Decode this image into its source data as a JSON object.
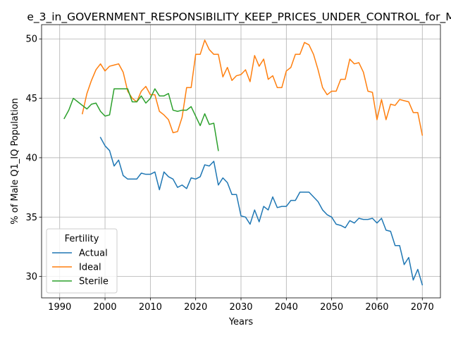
{
  "chart_data": {
    "type": "line",
    "title": "e_3_in_GOVERNMENT_RESPONSIBILITY_KEEP_PRICES_UNDER_CONTROL_for_M",
    "xlabel": "Years",
    "ylabel": "% of Male Q1_IQ Population",
    "xlim": [
      1986,
      2074
    ],
    "ylim": [
      28.2,
      51.2
    ],
    "xticks": [
      1990,
      2000,
      2010,
      2020,
      2030,
      2040,
      2050,
      2060,
      2070
    ],
    "yticks": [
      30,
      35,
      40,
      45,
      50
    ],
    "grid": true,
    "legend": {
      "title": "Fertility",
      "placement": "lower-left"
    },
    "series": [
      {
        "name": "Actual",
        "color": "#1f77b4",
        "x": [
          1999,
          2000,
          2001,
          2002,
          2003,
          2004,
          2005,
          2006,
          2007,
          2008,
          2009,
          2010,
          2011,
          2012,
          2013,
          2014,
          2015,
          2016,
          2017,
          2018,
          2019,
          2020,
          2021,
          2022,
          2023,
          2024,
          2025,
          2026,
          2027,
          2028,
          2029,
          2030,
          2031,
          2032,
          2033,
          2034,
          2035,
          2036,
          2037,
          2038,
          2039,
          2040,
          2041,
          2042,
          2043,
          2044,
          2045,
          2046,
          2047,
          2048,
          2049,
          2050,
          2051,
          2052,
          2053,
          2054,
          2055,
          2056,
          2057,
          2058,
          2059,
          2060,
          2061,
          2062,
          2063,
          2064,
          2065,
          2066,
          2067,
          2068,
          2069,
          2070
        ],
        "y": [
          41.7,
          41.0,
          40.6,
          39.3,
          39.8,
          38.5,
          38.2,
          38.2,
          38.2,
          38.7,
          38.6,
          38.6,
          38.8,
          37.3,
          38.8,
          38.4,
          38.2,
          37.5,
          37.7,
          37.4,
          38.3,
          38.2,
          38.4,
          39.4,
          39.3,
          39.7,
          37.7,
          38.3,
          37.9,
          36.9,
          36.9,
          35.1,
          35.0,
          34.4,
          35.6,
          34.6,
          35.9,
          35.6,
          36.7,
          35.8,
          35.9,
          35.9,
          36.4,
          36.4,
          37.1,
          37.1,
          37.1,
          36.7,
          36.3,
          35.6,
          35.2,
          35.0,
          34.4,
          34.3,
          34.1,
          34.7,
          34.5,
          34.9,
          34.8,
          34.8,
          34.9,
          34.5,
          34.9,
          33.9,
          33.8,
          32.6,
          32.6,
          31.0,
          31.6,
          29.7,
          30.6,
          29.3
        ]
      },
      {
        "name": "Ideal",
        "color": "#ff7f0e",
        "x": [
          1995,
          1996,
          1997,
          1998,
          1999,
          2000,
          2001,
          2002,
          2003,
          2004,
          2005,
          2006,
          2007,
          2008,
          2009,
          2010,
          2011,
          2012,
          2013,
          2014,
          2015,
          2016,
          2017,
          2018,
          2019,
          2020,
          2021,
          2022,
          2023,
          2024,
          2025,
          2026,
          2027,
          2028,
          2029,
          2030,
          2031,
          2032,
          2033,
          2034,
          2035,
          2036,
          2037,
          2038,
          2039,
          2040,
          2041,
          2042,
          2043,
          2044,
          2045,
          2046,
          2047,
          2048,
          2049,
          2050,
          2051,
          2052,
          2053,
          2054,
          2055,
          2056,
          2057,
          2058,
          2059,
          2060,
          2061,
          2062,
          2063,
          2064,
          2065,
          2066,
          2067,
          2068,
          2069,
          2070
        ],
        "y": [
          43.7,
          45.4,
          46.5,
          47.4,
          47.9,
          47.3,
          47.7,
          47.8,
          47.9,
          47.2,
          45.6,
          45.0,
          44.7,
          45.6,
          46.0,
          45.3,
          45.3,
          43.9,
          43.6,
          43.2,
          42.1,
          42.2,
          43.4,
          45.9,
          45.9,
          48.7,
          48.7,
          49.9,
          49.1,
          48.7,
          48.7,
          46.8,
          47.6,
          46.5,
          46.9,
          47.0,
          47.4,
          46.4,
          48.6,
          47.7,
          48.3,
          46.6,
          46.9,
          45.9,
          45.9,
          47.3,
          47.6,
          48.7,
          48.7,
          49.7,
          49.5,
          48.7,
          47.4,
          45.9,
          45.3,
          45.6,
          45.6,
          46.6,
          46.6,
          48.3,
          47.9,
          48.0,
          47.2,
          45.6,
          45.5,
          43.2,
          44.9,
          43.2,
          44.5,
          44.4,
          44.9,
          44.8,
          44.7,
          43.8,
          43.8,
          41.9
        ]
      },
      {
        "name": "Sterile",
        "color": "#2ca02c",
        "x": [
          1991,
          1992,
          1993,
          1994,
          1995,
          1996,
          1997,
          1998,
          1999,
          2000,
          2001,
          2002,
          2003,
          2004,
          2005,
          2006,
          2007,
          2008,
          2009,
          2010,
          2011,
          2012,
          2013,
          2014,
          2015,
          2016,
          2017,
          2018,
          2019,
          2020,
          2021,
          2022,
          2023,
          2024,
          2025
        ],
        "y": [
          43.3,
          44.0,
          45.0,
          44.7,
          44.4,
          44.1,
          44.5,
          44.6,
          43.9,
          43.5,
          43.6,
          45.8,
          45.8,
          45.8,
          45.8,
          44.7,
          44.7,
          45.2,
          44.6,
          45.0,
          45.8,
          45.2,
          45.2,
          45.4,
          44.0,
          43.9,
          44.0,
          44.0,
          44.3,
          43.5,
          42.7,
          43.7,
          42.8,
          42.9,
          40.6
        ]
      }
    ]
  }
}
